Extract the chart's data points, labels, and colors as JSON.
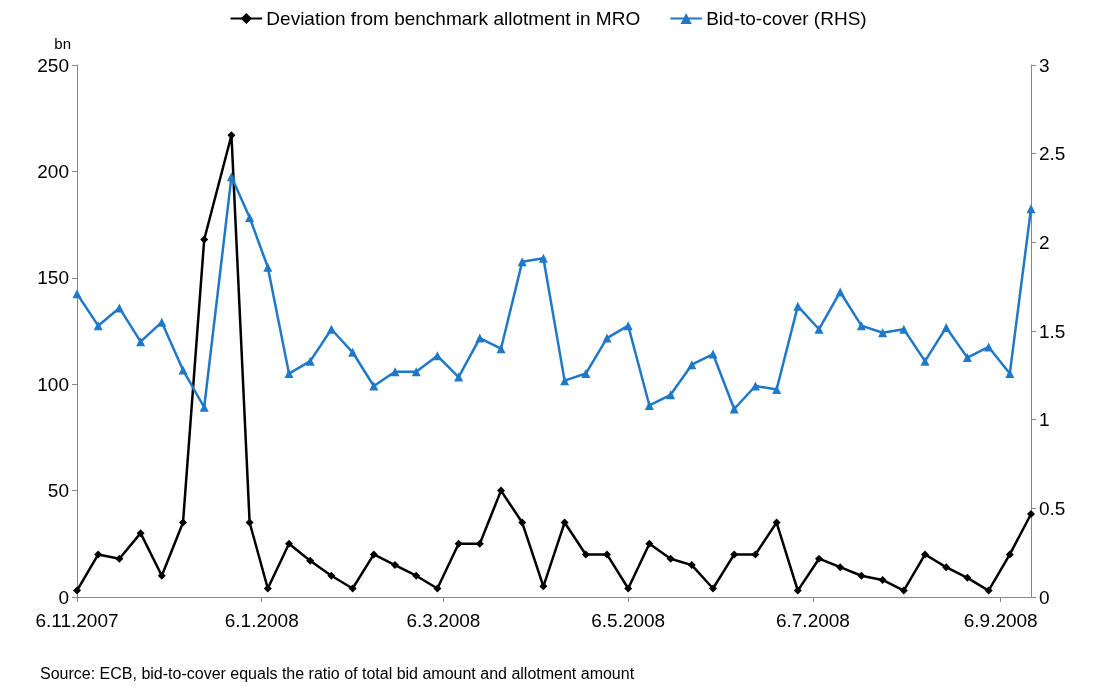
{
  "chart_data": {
    "type": "line",
    "x": [
      "2007-11-06",
      "2007-11-13",
      "2007-11-20",
      "2007-11-27",
      "2007-12-04",
      "2007-12-11",
      "2007-12-18",
      "2007-12-27",
      "2008-01-02",
      "2008-01-08",
      "2008-01-15",
      "2008-01-22",
      "2008-01-29",
      "2008-02-05",
      "2008-02-12",
      "2008-02-19",
      "2008-02-26",
      "2008-03-04",
      "2008-03-11",
      "2008-03-18",
      "2008-03-25",
      "2008-04-01",
      "2008-04-08",
      "2008-04-15",
      "2008-04-22",
      "2008-04-29",
      "2008-05-06",
      "2008-05-13",
      "2008-05-20",
      "2008-05-27",
      "2008-06-03",
      "2008-06-10",
      "2008-06-17",
      "2008-06-24",
      "2008-07-01",
      "2008-07-08",
      "2008-07-15",
      "2008-07-22",
      "2008-07-29",
      "2008-08-05",
      "2008-08-12",
      "2008-08-19",
      "2008-08-26",
      "2008-09-02",
      "2008-09-09",
      "2008-09-16"
    ],
    "series": [
      {
        "name": "Deviation from benchmark allotment in MRO",
        "color": "#000000",
        "marker": "diamond",
        "values": [
          3,
          20,
          18,
          30,
          10,
          35,
          168,
          217,
          35,
          4,
          25,
          17,
          10,
          4,
          20,
          15,
          10,
          4,
          25,
          25,
          50,
          35,
          5,
          35,
          20,
          20,
          4,
          25,
          18,
          15,
          4,
          20,
          20,
          35,
          3,
          18,
          14,
          10,
          8,
          3,
          20,
          14,
          9,
          3,
          20,
          39
        ]
      },
      {
        "name": "Bid-to-cover (RHS)",
        "color": "#1f78c8",
        "marker": "triangle",
        "axis": "y2",
        "values": [
          1.71,
          1.53,
          1.63,
          1.44,
          1.55,
          1.28,
          1.07,
          2.37,
          2.14,
          1.86,
          1.26,
          1.33,
          1.51,
          1.38,
          1.19,
          1.27,
          1.27,
          1.36,
          1.24,
          1.46,
          1.4,
          1.89,
          1.91,
          1.22,
          1.26,
          1.46,
          1.53,
          1.08,
          1.14,
          1.31,
          1.37,
          1.06,
          1.19,
          1.17,
          1.64,
          1.51,
          1.72,
          1.53,
          1.49,
          1.51,
          1.33,
          1.52,
          1.35,
          1.41,
          1.26,
          2.19
        ]
      }
    ],
    "ylabel": "bn",
    "xlim": [
      "2007-11-06",
      "2008-09-16"
    ],
    "xticks": [
      {
        "value": "2007-11-06",
        "label": "6.11.2007"
      },
      {
        "value": "2008-01-06",
        "label": "6.1.2008"
      },
      {
        "value": "2008-03-06",
        "label": "6.3.2008"
      },
      {
        "value": "2008-05-06",
        "label": "6.5.2008"
      },
      {
        "value": "2008-07-06",
        "label": "6.7.2008"
      },
      {
        "value": "2008-09-06",
        "label": "6.9.2008"
      }
    ],
    "ylim": [
      0,
      250
    ],
    "yticks": [
      0,
      50,
      100,
      150,
      200,
      250
    ],
    "y2lim": [
      0,
      3
    ],
    "y2ticks": [
      0,
      0.5,
      1,
      1.5,
      2,
      2.5,
      3
    ],
    "legend": "top",
    "grid": false,
    "annotations": [
      "Source: ECB, bid-to-cover equals the ratio of total bid amount and allotment amount"
    ]
  }
}
